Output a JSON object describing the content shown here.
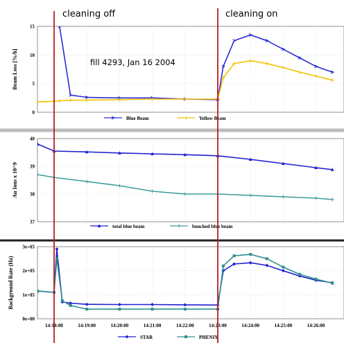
{
  "annotations": {
    "cleaning_off": "cleaning off",
    "cleaning_on": "cleaning on",
    "fill_label": "fill 4293, Jan 16 2004",
    "marker_color": "#c0171f"
  },
  "chart_data": [
    {
      "type": "line",
      "ylabel": "Beam Loss [%/h]",
      "ylim": [
        0,
        15
      ],
      "yticks": [
        "0",
        "5",
        "10",
        "15"
      ],
      "x": [
        "14:17:30",
        "14:18:00",
        "14:18:10",
        "14:18:30",
        "14:19:00",
        "14:20:00",
        "14:21:00",
        "14:22:00",
        "14:23:00",
        "14:23:10",
        "14:23:30",
        "14:24:00",
        "14:24:30",
        "14:25:00",
        "14:25:30",
        "14:26:00",
        "14:26:30"
      ],
      "series": [
        {
          "name": "Blue Beam",
          "color": "#2b2bd6",
          "marker": "arrow",
          "values": [
            null,
            null,
            15,
            3,
            2.6,
            2.5,
            2.5,
            2.3,
            2.2,
            8,
            12.5,
            13.5,
            12.5,
            11,
            9.5,
            8,
            7
          ]
        },
        {
          "name": "Yellow Beam",
          "color": "#f2c200",
          "marker": "plus",
          "values": [
            1.8,
            1.9,
            2.0,
            2.1,
            2.1,
            2.2,
            2.3,
            2.3,
            2.3,
            6,
            8.5,
            9.0,
            8.5,
            7.8,
            7.0,
            6.3,
            5.6
          ]
        }
      ]
    },
    {
      "type": "line",
      "ylabel": "Au Ions x 10^9",
      "ylim": [
        37,
        40
      ],
      "yticks": [
        "37",
        "38",
        "39",
        "40"
      ],
      "x": [
        "14:17:30",
        "14:18:00",
        "14:19:00",
        "14:20:00",
        "14:21:00",
        "14:22:00",
        "14:23:00",
        "14:24:00",
        "14:25:00",
        "14:26:00",
        "14:26:30"
      ],
      "series": [
        {
          "name": "total blue beam",
          "color": "#1f1fd0",
          "marker": "triangle",
          "values": [
            39.8,
            39.55,
            39.52,
            39.48,
            39.45,
            39.42,
            39.38,
            39.25,
            39.1,
            38.95,
            38.88
          ]
        },
        {
          "name": "bunched blue beam",
          "color": "#3c9a9a",
          "marker": "plus",
          "values": [
            38.7,
            38.6,
            38.45,
            38.3,
            38.1,
            38.0,
            38.0,
            37.95,
            37.9,
            37.85,
            37.8
          ]
        }
      ]
    },
    {
      "type": "line",
      "ylabel": "Background Rate (Hz)",
      "ylim": [
        0,
        300000
      ],
      "yticks": [
        "0e+00",
        "1e+05",
        "2e+05",
        "3e+05"
      ],
      "xticks": [
        "14:18:00",
        "14:19:00",
        "14:20:00",
        "14:21:00",
        "14:22:00",
        "14:23:00",
        "14:24:00",
        "14:25:00",
        "14:26:00"
      ],
      "x": [
        "14:17:30",
        "14:18:00",
        "14:18:05",
        "14:18:15",
        "14:18:30",
        "14:19:00",
        "14:20:00",
        "14:21:00",
        "14:22:00",
        "14:23:00",
        "14:23:10",
        "14:23:30",
        "14:24:00",
        "14:24:30",
        "14:25:00",
        "14:25:30",
        "14:26:00",
        "14:26:30"
      ],
      "series": [
        {
          "name": "STAR",
          "color": "#1f1fd0",
          "marker": "diamond",
          "values": [
            115000,
            110000,
            290000,
            70000,
            65000,
            60000,
            59000,
            59000,
            58000,
            57000,
            200000,
            228000,
            233000,
            222000,
            200000,
            178000,
            160000,
            150000
          ]
        },
        {
          "name": "PHENIX",
          "color": "#2f8f8f",
          "marker": "square",
          "values": [
            115000,
            110000,
            250000,
            75000,
            55000,
            40000,
            40000,
            40000,
            40000,
            40000,
            220000,
            262000,
            268000,
            250000,
            215000,
            185000,
            165000,
            148000
          ]
        }
      ]
    }
  ]
}
